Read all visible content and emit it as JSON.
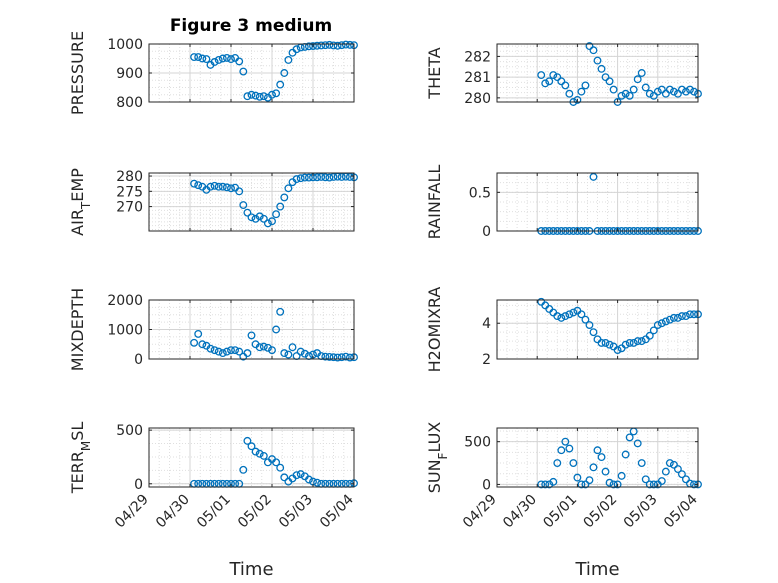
{
  "figure_title": "Figure 3 medium",
  "chart_data": [
    {
      "type": "scatter",
      "ylabel": "PRESSURE",
      "ylim": [
        800,
        1000
      ],
      "yticks": [
        "800",
        "900",
        "1000"
      ],
      "xlabel": "",
      "xticks": [
        "04/29",
        "04/30",
        "05/01",
        "05/02",
        "05/03",
        "05/04"
      ],
      "grid": "on",
      "x": [
        1.1,
        1.2,
        1.3,
        1.4,
        1.5,
        1.6,
        1.7,
        1.8,
        1.9,
        2.0,
        2.1,
        2.2,
        2.3,
        2.4,
        2.5,
        2.6,
        2.7,
        2.8,
        2.9,
        3.0,
        3.1,
        3.2,
        3.3,
        3.4,
        3.5,
        3.6,
        3.7,
        3.8,
        3.9,
        4.0,
        4.1,
        4.2,
        4.3,
        4.4,
        4.5,
        4.6,
        4.7,
        4.8,
        4.9,
        5.0
      ],
      "y": [
        955,
        955,
        950,
        948,
        928,
        938,
        945,
        950,
        952,
        948,
        952,
        940,
        905,
        820,
        825,
        822,
        818,
        820,
        815,
        825,
        830,
        860,
        900,
        945,
        970,
        982,
        988,
        990,
        992,
        993,
        994,
        995,
        996,
        997,
        995,
        994,
        996,
        998,
        997,
        996
      ]
    },
    {
      "type": "scatter",
      "ylabel": "THETA",
      "ylim": [
        279.8,
        282.6
      ],
      "yticks": [
        "280",
        "281",
        "282"
      ],
      "xlabel": "",
      "xticks": [
        "04/29",
        "04/30",
        "05/01",
        "05/02",
        "05/03",
        "05/04"
      ],
      "grid": "on",
      "x": [
        1.1,
        1.2,
        1.3,
        1.4,
        1.5,
        1.6,
        1.7,
        1.8,
        1.9,
        2.0,
        2.1,
        2.2,
        2.3,
        2.4,
        2.5,
        2.6,
        2.7,
        2.8,
        2.9,
        3.0,
        3.1,
        3.2,
        3.3,
        3.4,
        3.5,
        3.6,
        3.7,
        3.8,
        3.9,
        4.0,
        4.1,
        4.2,
        4.3,
        4.4,
        4.5,
        4.6,
        4.7,
        4.8,
        4.9,
        5.0
      ],
      "y": [
        281.1,
        280.7,
        280.8,
        281.1,
        281.0,
        280.8,
        280.6,
        280.2,
        279.7,
        279.9,
        280.3,
        280.6,
        282.5,
        282.3,
        281.8,
        281.4,
        281.0,
        280.8,
        280.4,
        279.8,
        280.1,
        280.2,
        280.1,
        280.4,
        280.9,
        281.2,
        280.5,
        280.2,
        280.1,
        280.3,
        280.4,
        280.2,
        280.4,
        280.3,
        280.2,
        280.4,
        280.3,
        280.4,
        280.3,
        280.2
      ]
    },
    {
      "type": "scatter",
      "ylabel": "AIR_TEMP",
      "ylim": [
        262,
        281
      ],
      "yticks": [
        "270",
        "275",
        "280"
      ],
      "xlabel": "",
      "xticks": [
        "04/29",
        "04/30",
        "05/01",
        "05/02",
        "05/03",
        "05/04"
      ],
      "grid": "on",
      "x": [
        1.1,
        1.2,
        1.3,
        1.4,
        1.5,
        1.6,
        1.7,
        1.8,
        1.9,
        2.0,
        2.1,
        2.2,
        2.3,
        2.4,
        2.5,
        2.6,
        2.7,
        2.8,
        2.9,
        3.0,
        3.1,
        3.2,
        3.3,
        3.4,
        3.5,
        3.6,
        3.7,
        3.8,
        3.9,
        4.0,
        4.1,
        4.2,
        4.3,
        4.4,
        4.5,
        4.6,
        4.7,
        4.8,
        4.9,
        5.0
      ],
      "y": [
        277.5,
        277.0,
        276.5,
        275.5,
        276.5,
        276.8,
        276.5,
        276.5,
        276.3,
        276.0,
        276.2,
        275.0,
        270.5,
        268.0,
        266.5,
        266.0,
        266.8,
        266.0,
        264.5,
        265.2,
        267.5,
        270.0,
        273.0,
        276.0,
        278.0,
        279.0,
        279.3,
        279.5,
        279.5,
        279.6,
        279.6,
        279.7,
        279.6,
        279.5,
        279.7,
        279.8,
        279.7,
        279.8,
        279.7,
        279.6
      ]
    },
    {
      "type": "scatter",
      "ylabel": "RAINFALL",
      "ylim": [
        0,
        0.75
      ],
      "yticks": [
        "0",
        "0.5"
      ],
      "xlabel": "",
      "xticks": [
        "04/29",
        "04/30",
        "05/01",
        "05/02",
        "05/03",
        "05/04"
      ],
      "grid": "on",
      "x": [
        1.1,
        1.2,
        1.3,
        1.4,
        1.5,
        1.6,
        1.7,
        1.8,
        1.9,
        2.0,
        2.1,
        2.2,
        2.3,
        2.4,
        2.5,
        2.6,
        2.7,
        2.8,
        2.9,
        3.0,
        3.1,
        3.2,
        3.3,
        3.4,
        3.5,
        3.6,
        3.7,
        3.8,
        3.9,
        4.0,
        4.1,
        4.2,
        4.3,
        4.4,
        4.5,
        4.6,
        4.7,
        4.8,
        4.9,
        5.0
      ],
      "y": [
        0,
        0,
        0,
        0,
        0,
        0,
        0,
        0,
        0,
        0,
        0,
        0,
        0,
        0.7,
        0,
        0,
        0,
        0,
        0,
        0,
        0,
        0,
        0,
        0,
        0,
        0,
        0,
        0,
        0,
        0,
        0,
        0,
        0,
        0,
        0,
        0,
        0,
        0,
        0,
        0
      ]
    },
    {
      "type": "scatter",
      "ylabel": "MIXDEPTH",
      "ylim": [
        0,
        2000
      ],
      "yticks": [
        "0",
        "1000",
        "2000"
      ],
      "xlabel": "",
      "xticks": [
        "04/29",
        "04/30",
        "05/01",
        "05/02",
        "05/03",
        "05/04"
      ],
      "grid": "on",
      "x": [
        1.1,
        1.2,
        1.3,
        1.4,
        1.5,
        1.6,
        1.7,
        1.8,
        1.9,
        2.0,
        2.1,
        2.2,
        2.3,
        2.4,
        2.5,
        2.6,
        2.7,
        2.8,
        2.9,
        3.0,
        3.1,
        3.2,
        3.3,
        3.4,
        3.5,
        3.6,
        3.7,
        3.8,
        3.9,
        4.0,
        4.1,
        4.2,
        4.3,
        4.4,
        4.5,
        4.6,
        4.7,
        4.8,
        4.9,
        5.0
      ],
      "y": [
        550,
        850,
        500,
        450,
        350,
        300,
        250,
        200,
        250,
        300,
        300,
        250,
        80,
        200,
        800,
        500,
        400,
        420,
        380,
        300,
        1000,
        1600,
        200,
        150,
        400,
        100,
        250,
        180,
        100,
        150,
        200,
        100,
        80,
        70,
        60,
        50,
        60,
        80,
        50,
        60
      ]
    },
    {
      "type": "scatter",
      "ylabel": "H2OMIXRA",
      "ylim": [
        2,
        5.3
      ],
      "yticks": [
        "2",
        "4"
      ],
      "xlabel": "",
      "xticks": [
        "04/29",
        "04/30",
        "05/01",
        "05/02",
        "05/03",
        "05/04"
      ],
      "grid": "on",
      "x": [
        1.1,
        1.2,
        1.3,
        1.4,
        1.5,
        1.6,
        1.7,
        1.8,
        1.9,
        2.0,
        2.1,
        2.2,
        2.3,
        2.4,
        2.5,
        2.6,
        2.7,
        2.8,
        2.9,
        3.0,
        3.1,
        3.2,
        3.3,
        3.4,
        3.5,
        3.6,
        3.7,
        3.8,
        3.9,
        4.0,
        4.1,
        4.2,
        4.3,
        4.4,
        4.5,
        4.6,
        4.7,
        4.8,
        4.9,
        5.0
      ],
      "y": [
        5.2,
        5.0,
        4.8,
        4.6,
        4.4,
        4.3,
        4.4,
        4.5,
        4.6,
        4.7,
        4.5,
        4.2,
        3.9,
        3.5,
        3.1,
        2.9,
        2.9,
        2.8,
        2.7,
        2.5,
        2.6,
        2.8,
        2.9,
        2.9,
        3.0,
        3.0,
        3.1,
        3.3,
        3.6,
        3.9,
        4.0,
        4.1,
        4.2,
        4.3,
        4.3,
        4.4,
        4.4,
        4.5,
        4.5,
        4.5
      ]
    },
    {
      "type": "scatter",
      "ylabel": "TERR_MSL",
      "ylim": [
        -30,
        520
      ],
      "yticks": [
        "0",
        "500"
      ],
      "xlabel": "Time",
      "xticks": [
        "04/29",
        "04/30",
        "05/01",
        "05/02",
        "05/03",
        "05/04"
      ],
      "grid": "on",
      "x": [
        1.1,
        1.2,
        1.3,
        1.4,
        1.5,
        1.6,
        1.7,
        1.8,
        1.9,
        2.0,
        2.1,
        2.2,
        2.3,
        2.4,
        2.5,
        2.6,
        2.7,
        2.8,
        2.9,
        3.0,
        3.1,
        3.2,
        3.3,
        3.4,
        3.5,
        3.6,
        3.7,
        3.8,
        3.9,
        4.0,
        4.1,
        4.2,
        4.3,
        4.4,
        4.5,
        4.6,
        4.7,
        4.8,
        4.9,
        5.0
      ],
      "y": [
        0,
        0,
        0,
        0,
        0,
        0,
        0,
        0,
        0,
        0,
        0,
        0,
        130,
        400,
        350,
        300,
        280,
        260,
        200,
        230,
        200,
        150,
        60,
        20,
        50,
        80,
        90,
        70,
        40,
        20,
        10,
        0,
        0,
        0,
        0,
        0,
        0,
        0,
        0,
        5
      ]
    },
    {
      "type": "scatter",
      "ylabel": "SUN_FLUX",
      "ylim": [
        -30,
        660
      ],
      "yticks": [
        "0",
        "500"
      ],
      "xlabel": "Time",
      "xticks": [
        "04/29",
        "04/30",
        "05/01",
        "05/02",
        "05/03",
        "05/04"
      ],
      "grid": "on",
      "x": [
        1.1,
        1.2,
        1.3,
        1.4,
        1.5,
        1.6,
        1.7,
        1.8,
        1.9,
        2.0,
        2.1,
        2.2,
        2.3,
        2.4,
        2.5,
        2.6,
        2.7,
        2.8,
        2.9,
        3.0,
        3.1,
        3.2,
        3.3,
        3.4,
        3.5,
        3.6,
        3.7,
        3.8,
        3.9,
        4.0,
        4.1,
        4.2,
        4.3,
        4.4,
        4.5,
        4.6,
        4.7,
        4.8,
        4.9,
        5.0
      ],
      "y": [
        0,
        0,
        0,
        30,
        250,
        400,
        500,
        420,
        250,
        80,
        0,
        0,
        50,
        200,
        400,
        320,
        150,
        20,
        0,
        0,
        100,
        350,
        550,
        620,
        480,
        250,
        60,
        0,
        0,
        0,
        40,
        150,
        250,
        230,
        180,
        120,
        60,
        10,
        0,
        0
      ]
    }
  ],
  "style": {
    "marker_color": "#0072BD",
    "axis_color": "#262626",
    "grid_color": "#dfdfdf"
  }
}
